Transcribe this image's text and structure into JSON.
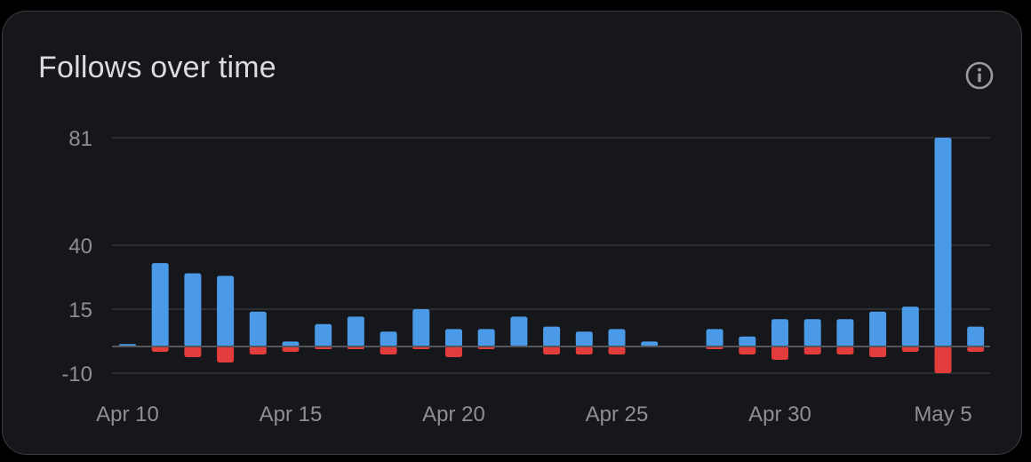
{
  "card": {
    "title": "Follows over time",
    "info_icon": "info-circle-icon"
  },
  "colors": {
    "background": "#16171b",
    "follows": "#4a9ae8",
    "unfollows": "#e23c3c",
    "grid": "#35363b",
    "zero_line": "#55565b",
    "tick_text": "#8e8f94"
  },
  "chart_data": {
    "type": "bar",
    "title": "Follows over time",
    "xlabel": "",
    "ylabel": "",
    "y_ticks": [
      -10,
      15,
      40,
      81
    ],
    "ylim": [
      -10,
      81
    ],
    "x_tick_labels": [
      "Apr 10",
      "Apr 15",
      "Apr 20",
      "Apr 25",
      "Apr 30",
      "May 5"
    ],
    "x_tick_indices": [
      0,
      5,
      10,
      15,
      20,
      25
    ],
    "categories": [
      "Apr 10",
      "Apr 11",
      "Apr 12",
      "Apr 13",
      "Apr 14",
      "Apr 15",
      "Apr 16",
      "Apr 17",
      "Apr 18",
      "Apr 19",
      "Apr 20",
      "Apr 21",
      "Apr 22",
      "Apr 23",
      "Apr 24",
      "Apr 25",
      "Apr 26",
      "Apr 27",
      "Apr 28",
      "Apr 29",
      "Apr 30",
      "May 1",
      "May 2",
      "May 3",
      "May 4",
      "May 5",
      "May 6"
    ],
    "grid": true,
    "legend": "none",
    "series": [
      {
        "key": "follows",
        "values": [
          1,
          33,
          29,
          28,
          14,
          2,
          9,
          12,
          6,
          15,
          7,
          7,
          12,
          8,
          6,
          7,
          2,
          0,
          7,
          4,
          11,
          11,
          11,
          14,
          16,
          81,
          8
        ]
      },
      {
        "key": "unfollows",
        "values": [
          0,
          -2,
          -4,
          -6,
          -3,
          -2,
          -1,
          -1,
          -3,
          -1,
          -4,
          -1,
          0,
          -3,
          -3,
          -3,
          0,
          0,
          -1,
          -3,
          -5,
          -3,
          -3,
          -4,
          -2,
          -10,
          -2
        ]
      }
    ]
  }
}
